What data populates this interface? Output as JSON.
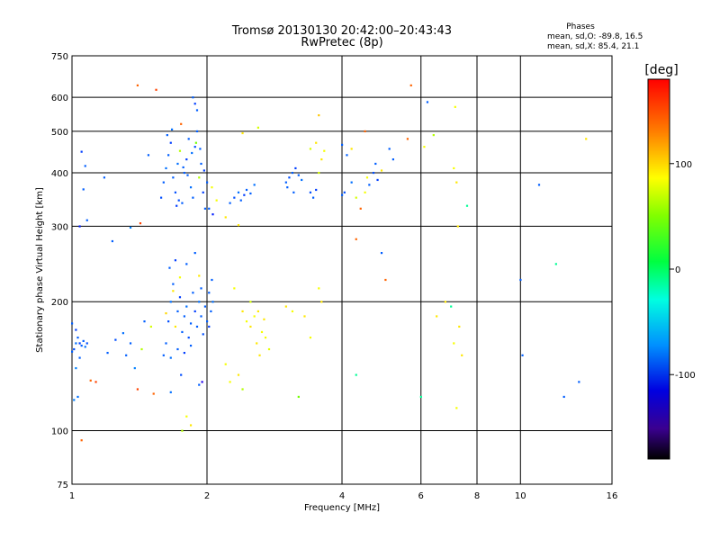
{
  "header": {
    "title_line1": "Tromsø 20130130 20:42:00–20:43:43",
    "title_line2": "RwPretec (8p)",
    "stats_title": "Phases",
    "stats_o": "mean, sd,O: -89.8, 16.5",
    "stats_x": "mean, sd,X:  85.4, 21.1"
  },
  "colorbar": {
    "label": "[deg]",
    "ticks": [
      {
        "value": 100,
        "label": "100"
      },
      {
        "value": 0,
        "label": "0"
      },
      {
        "value": -100,
        "label": "-100"
      }
    ],
    "range": [
      -180,
      180
    ]
  },
  "chart_data": {
    "type": "scatter",
    "title": "Tromsø 20130130 20:42:00–20:43:43",
    "subtitle": "RwPretec (8p)",
    "xlabel": "Frequency [MHz]",
    "ylabel": "Stationary phase Virtual Height [km]",
    "xscale": "log",
    "yscale": "log",
    "xlim": [
      1,
      16
    ],
    "ylim": [
      75,
      750
    ],
    "xticks": [
      {
        "value": 1,
        "label": "1"
      },
      {
        "value": 2,
        "label": "2"
      },
      {
        "value": 4,
        "label": "4"
      },
      {
        "value": 6,
        "label": "6"
      },
      {
        "value": 8,
        "label": "8"
      },
      {
        "value": 10,
        "label": "10"
      },
      {
        "value": 16,
        "label": "16"
      }
    ],
    "yticks": [
      {
        "value": 75,
        "label": "75"
      },
      {
        "value": 100,
        "label": "100"
      },
      {
        "value": 200,
        "label": "200"
      },
      {
        "value": 300,
        "label": "300"
      },
      {
        "value": 400,
        "label": "400"
      },
      {
        "value": 500,
        "label": "500"
      },
      {
        "value": 600,
        "label": "600"
      },
      {
        "value": 750,
        "label": "750"
      }
    ],
    "vgrid": [
      2,
      4,
      6,
      8,
      10
    ],
    "hgrid": [
      100,
      200,
      300,
      400,
      500,
      600
    ],
    "color_scale": "rainbow phase [deg], -180 to 180",
    "points": [
      [
        1.0,
        153,
        -100
      ],
      [
        1.01,
        155,
        -105
      ],
      [
        1.02,
        160,
        -95
      ],
      [
        1.03,
        165,
        -100
      ],
      [
        1.04,
        160,
        -110
      ],
      [
        1.05,
        158,
        -100
      ],
      [
        1.06,
        162,
        -100
      ],
      [
        1.07,
        157,
        -95
      ],
      [
        1.08,
        160,
        -105
      ],
      [
        1.02,
        140,
        -90
      ],
      [
        1.03,
        120,
        -95
      ],
      [
        1.01,
        118,
        -90
      ],
      [
        1.0,
        178,
        -100
      ],
      [
        1.04,
        148,
        -100
      ],
      [
        1.02,
        172,
        -110
      ],
      [
        1.05,
        95,
        150
      ],
      [
        1.1,
        131,
        150
      ],
      [
        1.13,
        130,
        160
      ],
      [
        1.2,
        152,
        -100
      ],
      [
        1.25,
        163,
        -105
      ],
      [
        1.3,
        169,
        -95
      ],
      [
        1.32,
        150,
        -100
      ],
      [
        1.35,
        160,
        -100
      ],
      [
        1.38,
        140,
        -90
      ],
      [
        1.4,
        125,
        160
      ],
      [
        1.43,
        155,
        80
      ],
      [
        1.45,
        180,
        -100
      ],
      [
        1.5,
        175,
        90
      ],
      [
        1.52,
        122,
        150
      ],
      [
        1.05,
        448,
        -110
      ],
      [
        1.07,
        415,
        -100
      ],
      [
        1.06,
        366,
        -100
      ],
      [
        1.08,
        310,
        -100
      ],
      [
        1.04,
        300,
        -120
      ],
      [
        1.18,
        390,
        -100
      ],
      [
        1.23,
        277,
        -100
      ],
      [
        1.35,
        298,
        -90
      ],
      [
        1.42,
        305,
        160
      ],
      [
        1.4,
        640,
        150
      ],
      [
        1.54,
        625,
        160
      ],
      [
        1.48,
        440,
        -100
      ],
      [
        1.58,
        350,
        -105
      ],
      [
        1.6,
        380,
        -100
      ],
      [
        1.62,
        410,
        -95
      ],
      [
        1.64,
        440,
        -100
      ],
      [
        1.66,
        470,
        -110
      ],
      [
        1.68,
        390,
        -100
      ],
      [
        1.7,
        360,
        -105
      ],
      [
        1.72,
        420,
        -95
      ],
      [
        1.74,
        450,
        80
      ],
      [
        1.76,
        340,
        -100
      ],
      [
        1.78,
        400,
        -100
      ],
      [
        1.8,
        430,
        -110
      ],
      [
        1.82,
        480,
        -100
      ],
      [
        1.84,
        370,
        -95
      ],
      [
        1.86,
        350,
        -100
      ],
      [
        1.88,
        460,
        -105
      ],
      [
        1.9,
        500,
        -100
      ],
      [
        1.92,
        390,
        80
      ],
      [
        1.94,
        420,
        -100
      ],
      [
        1.96,
        360,
        -110
      ],
      [
        1.98,
        330,
        -100
      ],
      [
        1.86,
        600,
        -100
      ],
      [
        1.88,
        580,
        -110
      ],
      [
        1.9,
        560,
        -100
      ],
      [
        1.75,
        520,
        150
      ],
      [
        1.63,
        490,
        -100
      ],
      [
        1.67,
        505,
        -95
      ],
      [
        1.71,
        335,
        -110
      ],
      [
        1.73,
        345,
        -105
      ],
      [
        1.77,
        412,
        -100
      ],
      [
        1.81,
        395,
        -100
      ],
      [
        1.85,
        445,
        -95
      ],
      [
        1.89,
        470,
        60
      ],
      [
        1.93,
        455,
        -100
      ],
      [
        1.97,
        405,
        -110
      ],
      [
        2.0,
        380,
        -100
      ],
      [
        2.05,
        370,
        100
      ],
      [
        2.1,
        345,
        100
      ],
      [
        2.06,
        320,
        -120
      ],
      [
        2.02,
        330,
        -100
      ],
      [
        1.62,
        160,
        -100
      ],
      [
        1.64,
        180,
        -105
      ],
      [
        1.66,
        200,
        -95
      ],
      [
        1.68,
        220,
        -100
      ],
      [
        1.7,
        175,
        110
      ],
      [
        1.72,
        190,
        -100
      ],
      [
        1.74,
        205,
        -110
      ],
      [
        1.76,
        170,
        -100
      ],
      [
        1.78,
        185,
        -100
      ],
      [
        1.8,
        195,
        -95
      ],
      [
        1.82,
        165,
        -105
      ],
      [
        1.84,
        178,
        -100
      ],
      [
        1.86,
        210,
        -100
      ],
      [
        1.88,
        190,
        -110
      ],
      [
        1.9,
        175,
        -100
      ],
      [
        1.92,
        200,
        -95
      ],
      [
        1.94,
        185,
        -100
      ],
      [
        1.96,
        168,
        -105
      ],
      [
        1.98,
        195,
        -100
      ],
      [
        2.0,
        180,
        -100
      ],
      [
        2.02,
        175,
        -110
      ],
      [
        2.04,
        190,
        -100
      ],
      [
        2.06,
        200,
        -95
      ],
      [
        1.65,
        240,
        -100
      ],
      [
        1.7,
        250,
        -110
      ],
      [
        1.8,
        245,
        -100
      ],
      [
        1.88,
        260,
        -100
      ],
      [
        1.92,
        230,
        110
      ],
      [
        1.6,
        150,
        -100
      ],
      [
        1.66,
        148,
        -95
      ],
      [
        1.72,
        155,
        -100
      ],
      [
        1.78,
        152,
        -110
      ],
      [
        1.84,
        158,
        -100
      ],
      [
        1.75,
        135,
        -105
      ],
      [
        1.92,
        128,
        -100
      ],
      [
        1.66,
        123,
        -95
      ],
      [
        1.8,
        108,
        100
      ],
      [
        1.84,
        103,
        110
      ],
      [
        1.76,
        100,
        80
      ],
      [
        1.95,
        130,
        -140
      ],
      [
        2.02,
        210,
        -100
      ],
      [
        2.05,
        225,
        -100
      ],
      [
        1.68,
        212,
        110
      ],
      [
        1.74,
        228,
        100
      ],
      [
        1.94,
        215,
        -100
      ],
      [
        1.62,
        188,
        115
      ],
      [
        2.25,
        340,
        -100
      ],
      [
        2.3,
        350,
        -105
      ],
      [
        2.35,
        360,
        -95
      ],
      [
        2.38,
        345,
        -100
      ],
      [
        2.42,
        355,
        -110
      ],
      [
        2.45,
        365,
        -100
      ],
      [
        2.5,
        358,
        -100
      ],
      [
        2.55,
        375,
        -95
      ],
      [
        2.4,
        495,
        110
      ],
      [
        2.2,
        315,
        110
      ],
      [
        2.6,
        510,
        90
      ],
      [
        2.35,
        302,
        110
      ],
      [
        2.4,
        190,
        110
      ],
      [
        2.45,
        180,
        100
      ],
      [
        2.5,
        175,
        110
      ],
      [
        2.55,
        185,
        100
      ],
      [
        2.6,
        190,
        110
      ],
      [
        2.65,
        170,
        100
      ],
      [
        2.68,
        182,
        110
      ],
      [
        2.7,
        165,
        100
      ],
      [
        2.58,
        160,
        110
      ],
      [
        2.3,
        215,
        100
      ],
      [
        2.25,
        130,
        100
      ],
      [
        2.4,
        125,
        80
      ],
      [
        2.5,
        200,
        90
      ],
      [
        2.2,
        143,
        100
      ],
      [
        2.35,
        135,
        110
      ],
      [
        2.62,
        150,
        110
      ],
      [
        2.75,
        155,
        95
      ],
      [
        3.0,
        380,
        -100
      ],
      [
        3.05,
        390,
        -105
      ],
      [
        3.1,
        400,
        -100
      ],
      [
        3.15,
        410,
        -110
      ],
      [
        3.2,
        395,
        -100
      ],
      [
        3.25,
        385,
        -95
      ],
      [
        3.02,
        370,
        -100
      ],
      [
        3.12,
        360,
        -100
      ],
      [
        3.4,
        360,
        -105
      ],
      [
        3.45,
        350,
        -100
      ],
      [
        3.5,
        365,
        -110
      ],
      [
        3.55,
        400,
        90
      ],
      [
        3.6,
        430,
        110
      ],
      [
        3.65,
        450,
        100
      ],
      [
        3.5,
        470,
        110
      ],
      [
        3.4,
        455,
        90
      ],
      [
        3.55,
        545,
        120
      ],
      [
        3.3,
        185,
        110
      ],
      [
        3.55,
        215,
        100
      ],
      [
        3.6,
        200,
        110
      ],
      [
        3.4,
        165,
        100
      ],
      [
        3.2,
        120,
        60
      ],
      [
        3.0,
        195,
        110
      ],
      [
        3.1,
        190,
        100
      ],
      [
        4.0,
        355,
        -100
      ],
      [
        4.05,
        360,
        -105
      ],
      [
        4.1,
        440,
        -100
      ],
      [
        4.2,
        380,
        -95
      ],
      [
        4.3,
        350,
        90
      ],
      [
        4.4,
        330,
        150
      ],
      [
        4.5,
        360,
        100
      ],
      [
        4.55,
        390,
        100
      ],
      [
        4.6,
        375,
        -100
      ],
      [
        4.7,
        400,
        -105
      ],
      [
        4.75,
        420,
        -100
      ],
      [
        4.8,
        385,
        -110
      ],
      [
        4.5,
        500,
        150
      ],
      [
        4.3,
        280,
        150
      ],
      [
        4.2,
        455,
        110
      ],
      [
        4.0,
        465,
        -100
      ],
      [
        4.9,
        260,
        -100
      ],
      [
        4.3,
        135,
        -20
      ],
      [
        5.1,
        455,
        -100
      ],
      [
        5.2,
        430,
        -100
      ],
      [
        4.9,
        405,
        110
      ],
      [
        5.0,
        225,
        150
      ],
      [
        5.6,
        480,
        150
      ],
      [
        5.7,
        640,
        150
      ],
      [
        6.2,
        585,
        -100
      ],
      [
        6.4,
        490,
        80
      ],
      [
        6.5,
        185,
        110
      ],
      [
        6.0,
        120,
        -20
      ],
      [
        6.1,
        460,
        100
      ],
      [
        6.8,
        200,
        110
      ],
      [
        7.1,
        410,
        100
      ],
      [
        7.2,
        380,
        110
      ],
      [
        7.25,
        300,
        110
      ],
      [
        7.15,
        570,
        100
      ],
      [
        7.0,
        195,
        -20
      ],
      [
        7.3,
        175,
        110
      ],
      [
        7.1,
        160,
        100
      ],
      [
        7.4,
        150,
        110
      ],
      [
        7.2,
        113,
        100
      ],
      [
        7.6,
        335,
        -20
      ],
      [
        10.0,
        225,
        -100
      ],
      [
        10.1,
        150,
        -100
      ],
      [
        11.0,
        375,
        -100
      ],
      [
        12.0,
        245,
        -20
      ],
      [
        12.5,
        120,
        -100
      ],
      [
        13.5,
        130,
        -100
      ],
      [
        14.0,
        480,
        110
      ]
    ]
  }
}
